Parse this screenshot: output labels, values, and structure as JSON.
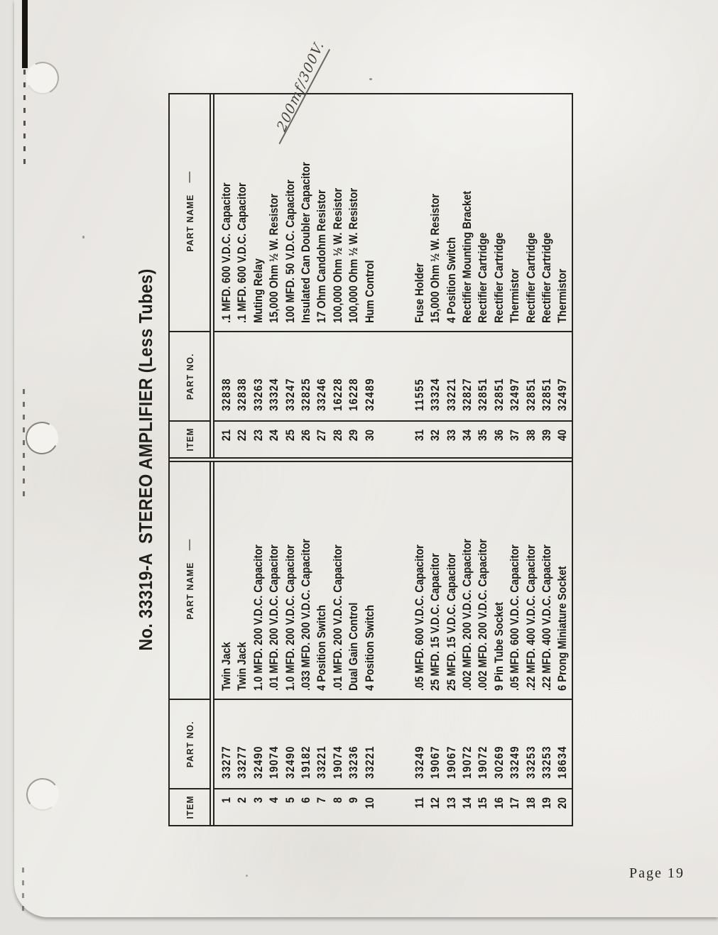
{
  "document": {
    "title": "No. 33319-A  STEREO AMPLIFIER (Less Tubes)",
    "page_number": "Page 19",
    "annotation": "200mf/300V."
  },
  "table": {
    "headers": {
      "item": "ITEM",
      "part_no": "PART NO.",
      "part_name": "PART NAME"
    },
    "rows_1_20": [
      {
        "item": "1",
        "part_no": "33277",
        "part_name": "Twin Jack"
      },
      {
        "item": "2",
        "part_no": "33277",
        "part_name": "Twin Jack"
      },
      {
        "item": "3",
        "part_no": "32490",
        "part_name": "1.0 MFD. 200 V.D.C. Capacitor"
      },
      {
        "item": "4",
        "part_no": "19074",
        "part_name": ".01 MFD. 200 V.D.C. Capacitor"
      },
      {
        "item": "5",
        "part_no": "32490",
        "part_name": "1.0 MFD. 200 V.D.C. Capacitor"
      },
      {
        "item": "6",
        "part_no": "19182",
        "part_name": ".033 MFD. 200 V.D.C. Capacitor"
      },
      {
        "item": "7",
        "part_no": "33221",
        "part_name": "4 Position Switch"
      },
      {
        "item": "8",
        "part_no": "19074",
        "part_name": ".01 MFD. 200 V.D.C. Capacitor"
      },
      {
        "item": "9",
        "part_no": "33236",
        "part_name": "Dual Gain Control"
      },
      {
        "item": "10",
        "part_no": "33221",
        "part_name": "4 Position Switch"
      },
      {
        "item": "11",
        "part_no": "33249",
        "part_name": ".05 MFD. 600 V.D.C. Capacitor"
      },
      {
        "item": "12",
        "part_no": "19067",
        "part_name": "25 MFD. 15 V.D.C. Capacitor"
      },
      {
        "item": "13",
        "part_no": "19067",
        "part_name": "25 MFD. 15 V.D.C. Capacitor"
      },
      {
        "item": "14",
        "part_no": "19072",
        "part_name": ".002 MFD. 200 V.D.C. Capacitor"
      },
      {
        "item": "15",
        "part_no": "19072",
        "part_name": ".002 MFD. 200 V.D.C. Capacitor"
      },
      {
        "item": "16",
        "part_no": "30269",
        "part_name": "9 Pin Tube Socket"
      },
      {
        "item": "17",
        "part_no": "33249",
        "part_name": ".05 MFD. 600 V.D.C. Capacitor"
      },
      {
        "item": "18",
        "part_no": "33253",
        "part_name": ".22 MFD. 400 V.D.C. Capacitor"
      },
      {
        "item": "19",
        "part_no": "33253",
        "part_name": ".22 MFD. 400 V.D.C. Capacitor"
      },
      {
        "item": "20",
        "part_no": "18634",
        "part_name": "6 Prong Miniature Socket"
      }
    ],
    "rows_21_40": [
      {
        "item": "21",
        "part_no": "32838",
        "part_name": ".1 MFD. 600 V.D.C. Capacitor"
      },
      {
        "item": "22",
        "part_no": "32838",
        "part_name": ".1 MFD. 600 V.D.C. Capacitor"
      },
      {
        "item": "23",
        "part_no": "33263",
        "part_name": "Muting Relay"
      },
      {
        "item": "24",
        "part_no": "33324",
        "part_name": "15,000 Ohm ½ W. Resistor"
      },
      {
        "item": "25",
        "part_no": "33247",
        "part_name": "100 MFD. 50 V.D.C. Capacitor"
      },
      {
        "item": "26",
        "part_no": "32825",
        "part_name": "Insulated Can Doubler Capacitor"
      },
      {
        "item": "27",
        "part_no": "33246",
        "part_name": "17 Ohm Candohm Resistor"
      },
      {
        "item": "28",
        "part_no": "16228",
        "part_name": "100,000 Ohm ½ W. Resistor"
      },
      {
        "item": "29",
        "part_no": "16228",
        "part_name": "100,000 Ohm ½ W. Resistor"
      },
      {
        "item": "30",
        "part_no": "32489",
        "part_name": "Hum Control"
      },
      {
        "item": "31",
        "part_no": "11555",
        "part_name": "Fuse Holder"
      },
      {
        "item": "32",
        "part_no": "33324",
        "part_name": "15,000 Ohm ½ W. Resistor"
      },
      {
        "item": "33",
        "part_no": "33221",
        "part_name": "4 Position Switch"
      },
      {
        "item": "34",
        "part_no": "32827",
        "part_name": "Rectifier Mounting Bracket"
      },
      {
        "item": "35",
        "part_no": "32851",
        "part_name": "Rectifier Cartridge"
      },
      {
        "item": "36",
        "part_no": "32851",
        "part_name": "Rectifier Cartridge"
      },
      {
        "item": "37",
        "part_no": "32497",
        "part_name": "Thermistor"
      },
      {
        "item": "38",
        "part_no": "32851",
        "part_name": "Rectifier Cartridge"
      },
      {
        "item": "39",
        "part_no": "32851",
        "part_name": "Rectifier Cartridge"
      },
      {
        "item": "40",
        "part_no": "32497",
        "part_name": "Thermistor"
      }
    ]
  },
  "colors": {
    "paper": "#ebe9e5",
    "scanner_background": "#e3e2df",
    "ink": "#1d1c17",
    "table_border": "#26241e",
    "annotation_ink": "#45433a"
  }
}
